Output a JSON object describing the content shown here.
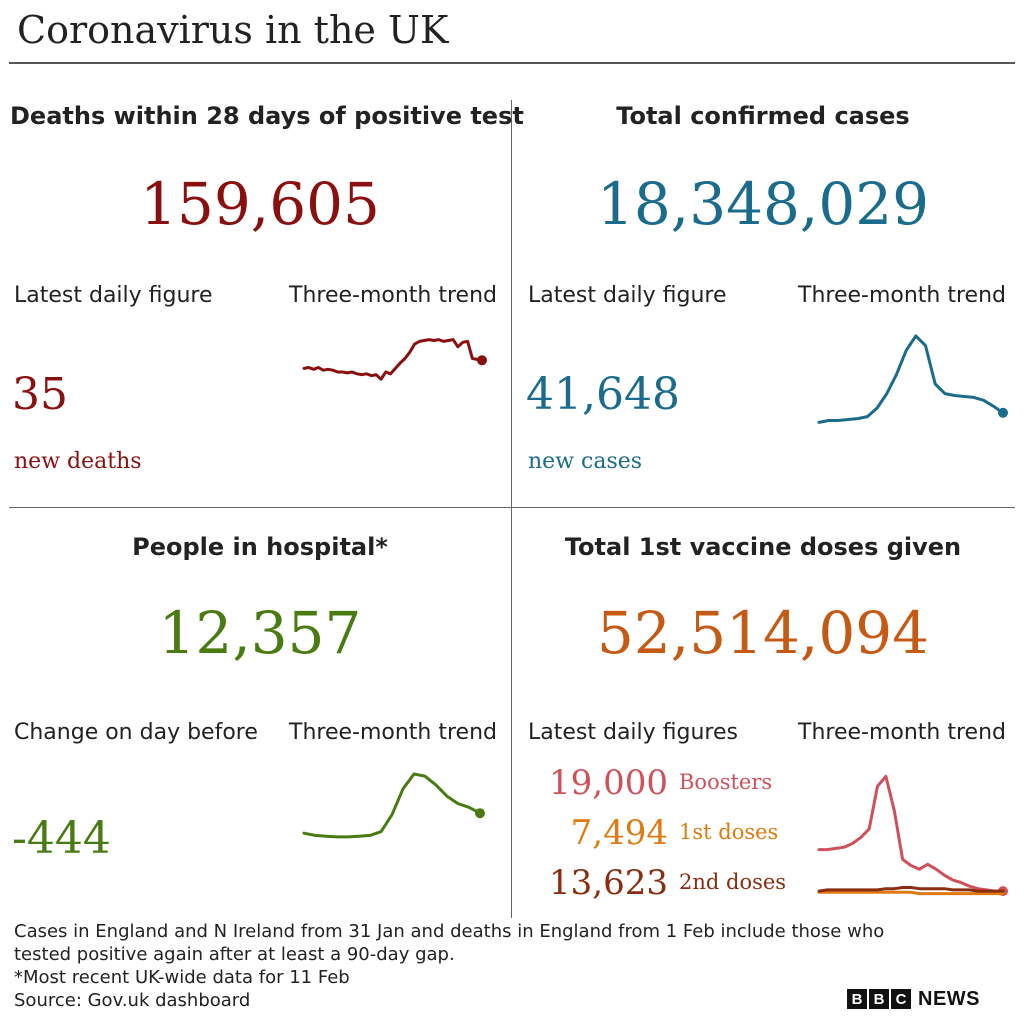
{
  "title": "Coronavirus in the UK",
  "colors": {
    "deaths": "#8a0f0f",
    "cases": "#1a6b8c",
    "hospital": "#4a7a12",
    "vaccine": "#c45a14",
    "boosters": "#d0505a",
    "first_doses": "#df7a10",
    "second_doses": "#8a2d10"
  },
  "panels": {
    "deaths": {
      "heading": "Deaths within 28 days of positive test",
      "total": "159,605",
      "left_label": "Latest daily figure",
      "right_label": "Three-month trend",
      "daily": "35",
      "unit": "new deaths"
    },
    "cases": {
      "heading": "Total confirmed cases",
      "total": "18,348,029",
      "left_label": "Latest daily figure",
      "right_label": "Three-month trend",
      "daily": "41,648",
      "unit": "new cases"
    },
    "hospital": {
      "heading": "People in hospital*",
      "total": "12,357",
      "left_label": "Change on day before",
      "right_label": "Three-month trend",
      "daily": "-444"
    },
    "vaccine": {
      "heading": "Total 1st vaccine doses given",
      "total": "52,514,094",
      "left_label": "Latest daily figures",
      "right_label": "Three-month trend",
      "rows": [
        {
          "value": "19,000",
          "label": "Boosters"
        },
        {
          "value": "7,494",
          "label": "1st doses"
        },
        {
          "value": "13,623",
          "label": "2nd doses"
        }
      ]
    }
  },
  "footnotes": {
    "line1": "Cases in England and N Ireland from 31 Jan and deaths in England from 1 Feb include those who",
    "line2": "tested positive again after at least a 90-day gap.",
    "line3": "*Most recent UK-wide data for 11 Feb",
    "source": "Source: Gov.uk dashboard"
  },
  "logo": {
    "b1": "B",
    "b2": "B",
    "c": "C",
    "news": "NEWS"
  },
  "chart_data": [
    {
      "type": "line",
      "title": "Three-month trend",
      "series": [
        {
          "values": [
            0.64,
            0.65,
            0.63,
            0.65,
            0.62,
            0.63,
            0.62,
            0.6,
            0.6,
            0.59,
            0.6,
            0.58,
            0.57,
            0.58,
            0.56,
            0.57,
            0.52,
            0.6,
            0.58,
            0.64,
            0.7,
            0.75,
            0.82,
            0.91,
            0.94,
            0.95,
            0.96,
            0.95,
            0.96,
            0.94,
            0.95,
            0.96,
            0.88,
            0.93,
            0.94,
            0.75,
            0.74,
            0.73
          ]
        }
      ]
    },
    {
      "type": "line",
      "title": "Three-month trend",
      "series": [
        {
          "values": [
            0.1,
            0.12,
            0.12,
            0.13,
            0.14,
            0.16,
            0.25,
            0.4,
            0.6,
            0.85,
            1.0,
            0.9,
            0.5,
            0.4,
            0.38,
            0.37,
            0.36,
            0.33,
            0.27,
            0.2
          ]
        }
      ]
    },
    {
      "type": "line",
      "title": "Three-month trend",
      "series": [
        {
          "values": [
            0.2,
            0.17,
            0.16,
            0.15,
            0.15,
            0.16,
            0.17,
            0.22,
            0.45,
            0.8,
            1.0,
            0.97,
            0.85,
            0.7,
            0.6,
            0.55,
            0.47
          ]
        }
      ]
    },
    {
      "type": "line",
      "title": "Three-month trend",
      "series": [
        {
          "name": "Boosters",
          "values": [
            0.38,
            0.38,
            0.39,
            0.4,
            0.43,
            0.48,
            0.55,
            0.9,
            0.98,
            0.7,
            0.3,
            0.25,
            0.22,
            0.26,
            0.22,
            0.17,
            0.13,
            0.11,
            0.08,
            0.06,
            0.05,
            0.04,
            0.04
          ]
        },
        {
          "name": "1st doses",
          "values": [
            0.03,
            0.03,
            0.03,
            0.03,
            0.03,
            0.03,
            0.03,
            0.03,
            0.03,
            0.03,
            0.03,
            0.03,
            0.02,
            0.02,
            0.02,
            0.02,
            0.02,
            0.02,
            0.02,
            0.02,
            0.02,
            0.02,
            0.02
          ]
        },
        {
          "name": "2nd doses",
          "values": [
            0.04,
            0.05,
            0.05,
            0.05,
            0.05,
            0.05,
            0.05,
            0.05,
            0.06,
            0.06,
            0.07,
            0.07,
            0.06,
            0.06,
            0.06,
            0.06,
            0.05,
            0.05,
            0.05,
            0.04,
            0.04,
            0.04,
            0.04
          ]
        }
      ]
    }
  ]
}
